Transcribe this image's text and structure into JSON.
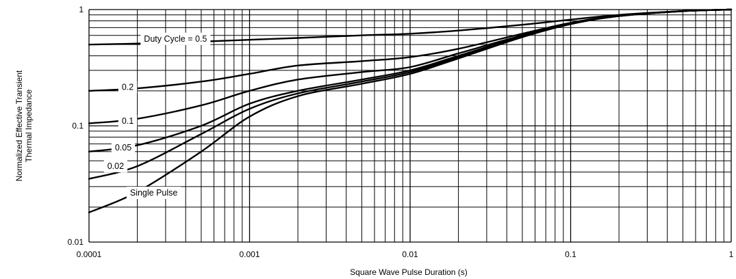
{
  "chart_data": {
    "type": "line",
    "title": "",
    "xlabel": "Square Wave Pulse Duration (s)",
    "ylabel_lines": [
      "Normalized Effective Transient",
      "Thermal Impedance"
    ],
    "x_scale": "log",
    "y_scale": "log",
    "xlim": [
      0.0001,
      1
    ],
    "ylim": [
      0.01,
      1
    ],
    "grid": true,
    "x_ticks": [
      {
        "value": 0.0001,
        "label": "0.0001"
      },
      {
        "value": 0.001,
        "label": "0.001"
      },
      {
        "value": 0.01,
        "label": "0.01"
      },
      {
        "value": 0.1,
        "label": "0.1"
      },
      {
        "value": 1,
        "label": "1"
      }
    ],
    "y_ticks": [
      {
        "value": 0.01,
        "label": "0.01"
      },
      {
        "value": 0.1,
        "label": "0.1"
      },
      {
        "value": 1,
        "label": "1"
      }
    ],
    "series": [
      {
        "name": "Duty Cycle = 0.5",
        "x": [
          0.0001,
          0.0002,
          0.0005,
          0.001,
          0.002,
          0.005,
          0.01,
          0.02,
          0.05,
          0.1,
          0.2,
          0.5,
          1
        ],
        "y": [
          0.5,
          0.51,
          0.53,
          0.55,
          0.57,
          0.6,
          0.62,
          0.66,
          0.74,
          0.82,
          0.9,
          0.97,
          1.0
        ]
      },
      {
        "name": "0.2",
        "x": [
          0.0001,
          0.0002,
          0.0005,
          0.001,
          0.002,
          0.005,
          0.01,
          0.02,
          0.05,
          0.1,
          0.2,
          0.5,
          1
        ],
        "y": [
          0.2,
          0.21,
          0.24,
          0.28,
          0.33,
          0.36,
          0.39,
          0.46,
          0.62,
          0.77,
          0.89,
          0.97,
          1.0
        ]
      },
      {
        "name": "0.1",
        "x": [
          0.0001,
          0.0002,
          0.0005,
          0.001,
          0.002,
          0.005,
          0.01,
          0.02,
          0.05,
          0.1,
          0.2,
          0.5,
          1
        ],
        "y": [
          0.105,
          0.115,
          0.15,
          0.2,
          0.25,
          0.29,
          0.32,
          0.42,
          0.6,
          0.76,
          0.88,
          0.97,
          1.0
        ]
      },
      {
        "name": "0.05",
        "x": [
          0.0001,
          0.0002,
          0.0005,
          0.001,
          0.002,
          0.005,
          0.01,
          0.02,
          0.05,
          0.1,
          0.2,
          0.5,
          1
        ],
        "y": [
          0.06,
          0.068,
          0.1,
          0.155,
          0.2,
          0.25,
          0.3,
          0.4,
          0.59,
          0.76,
          0.88,
          0.97,
          1.0
        ]
      },
      {
        "name": "0.02",
        "x": [
          0.0001,
          0.0002,
          0.0005,
          0.001,
          0.002,
          0.005,
          0.01,
          0.02,
          0.05,
          0.1,
          0.2,
          0.5,
          1
        ],
        "y": [
          0.035,
          0.045,
          0.085,
          0.14,
          0.19,
          0.24,
          0.29,
          0.39,
          0.58,
          0.75,
          0.88,
          0.97,
          1.0
        ]
      },
      {
        "name": "Single Pulse",
        "x": [
          0.0001,
          0.0002,
          0.0005,
          0.001,
          0.002,
          0.005,
          0.01,
          0.02,
          0.05,
          0.1,
          0.2,
          0.5,
          1
        ],
        "y": [
          0.018,
          0.027,
          0.06,
          0.12,
          0.18,
          0.23,
          0.28,
          0.38,
          0.58,
          0.75,
          0.88,
          0.97,
          1.0
        ]
      }
    ],
    "annotations": [
      {
        "text": "Duty Cycle = 0.5",
        "series": "Duty Cycle = 0.5",
        "x": 0.00022,
        "y": 0.56
      },
      {
        "text": "0.2",
        "series": "0.2",
        "x": 0.00016,
        "y": 0.215
      },
      {
        "text": "0.1",
        "series": "0.1",
        "x": 0.00016,
        "y": 0.11
      },
      {
        "text": "0.05",
        "series": "0.05",
        "x": 0.000145,
        "y": 0.065
      },
      {
        "text": "0.02",
        "series": "0.02",
        "x": 0.00013,
        "y": 0.045
      },
      {
        "text": "Single Pulse",
        "series": "Single Pulse",
        "x": 0.00018,
        "y": 0.0265
      }
    ],
    "line_color": "#000000",
    "grid_color": "#000000",
    "background": "#ffffff"
  }
}
